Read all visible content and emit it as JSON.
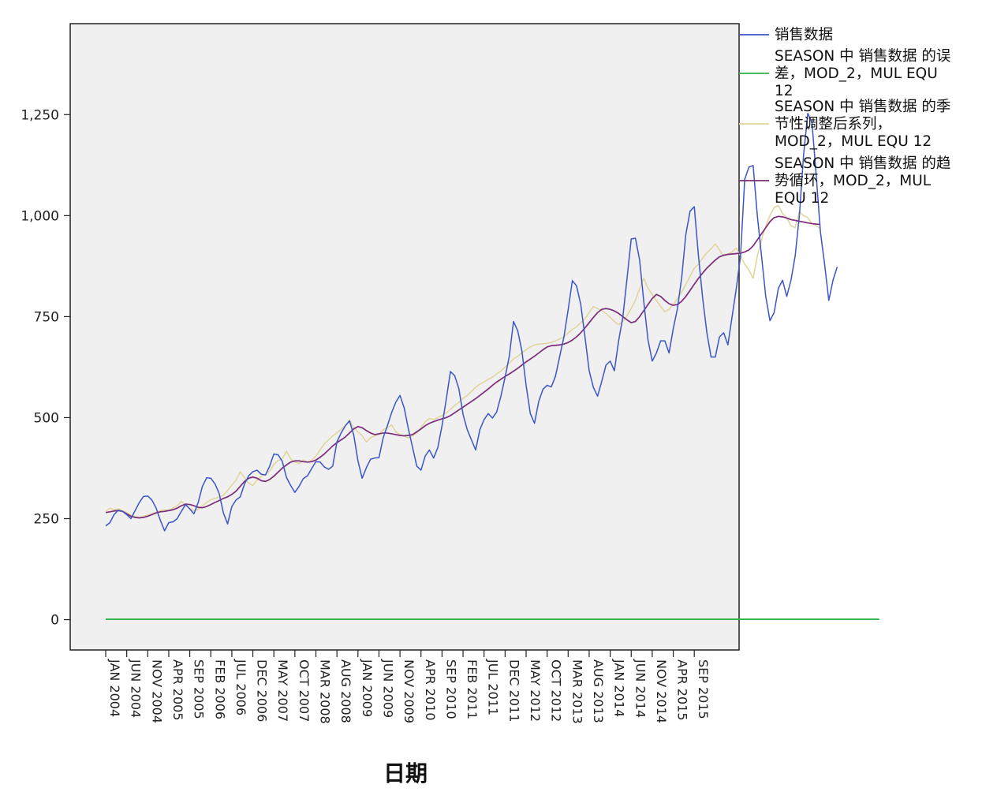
{
  "chart_data": {
    "type": "line",
    "title": "",
    "xlabel": "日期",
    "ylabel": "",
    "ylim": [
      -75,
      1475
    ],
    "y_ticks": [
      {
        "value": 0,
        "label": "0"
      },
      {
        "value": 250,
        "label": "250"
      },
      {
        "value": 500,
        "label": "500"
      },
      {
        "value": 750,
        "label": "750"
      },
      {
        "value": 1000,
        "label": "1,000"
      },
      {
        "value": 1250,
        "label": "1,250"
      }
    ],
    "x_tick_labels": [
      "JAN 2004",
      "JUN 2004",
      "NOV 2004",
      "APR 2005",
      "SEP 2005",
      "FEB 2006",
      "JUL 2006",
      "DEC 2006",
      "MAY 2007",
      "OCT 2007",
      "MAR 2008",
      "AUG 2008",
      "JAN 2009",
      "JUN 2009",
      "NOV 2009",
      "APR 2010",
      "SEP 2010",
      "FEB 2011",
      "JUL 2011",
      "DEC 2011",
      "MAY 2012",
      "OCT 2012",
      "MAR 2013",
      "AUG 2013",
      "JAN 2014",
      "JUN 2014",
      "NOV 2014",
      "APR 2015",
      "SEP 2015"
    ],
    "x_start": "JAN 2004",
    "x_end": "MAR 2016",
    "grid": false,
    "legend_position": "right",
    "series": [
      {
        "name": "销售数据",
        "color": "#3a55c8",
        "values": [
          232,
          240,
          260,
          271,
          268,
          260,
          250,
          270,
          290,
          305,
          306,
          296,
          276,
          246,
          220,
          240,
          242,
          250,
          268,
          285,
          274,
          262,
          290,
          330,
          351,
          350,
          336,
          312,
          264,
          237,
          280,
          296,
          304,
          335,
          356,
          366,
          370,
          360,
          358,
          380,
          410,
          408,
          392,
          352,
          332,
          315,
          330,
          349,
          356,
          374,
          391,
          390,
          378,
          372,
          380,
          440,
          462,
          480,
          492,
          457,
          393,
          350,
          376,
          397,
          400,
          401,
          450,
          480,
          512,
          538,
          555,
          524,
          472,
          426,
          380,
          370,
          405,
          420,
          400,
          426,
          480,
          545,
          614,
          604,
          572,
          508,
          470,
          445,
          420,
          470,
          495,
          510,
          499,
          514,
          553,
          600,
          652,
          738,
          715,
          665,
          580,
          510,
          486,
          540,
          570,
          580,
          576,
          603,
          652,
          700,
          767,
          839,
          826,
          780,
          700,
          616,
          575,
          553,
          590,
          630,
          640,
          616,
          690,
          748,
          844,
          942,
          944,
          890,
          786,
          692,
          640,
          660,
          690,
          690,
          660,
          720,
          770,
          846,
          954,
          1011,
          1022,
          900,
          795,
          710,
          650,
          650,
          700,
          710,
          680,
          750,
          820,
          900,
          1090,
          1120,
          1124,
          1000,
          900,
          800,
          740,
          760,
          820,
          840,
          800,
          840,
          900,
          1000,
          1150,
          1253,
          1230,
          1100,
          960,
          880,
          790,
          840,
          873
        ]
      },
      {
        "name": "SEASON 中 销售数据 的误差，MOD_2，MUL EQU 12",
        "color": "#2fb344",
        "values": [
          1.0,
          1.0,
          1.0,
          1.0,
          1.0,
          1.0,
          1.0,
          1.0,
          1.0,
          1.0,
          1.0,
          1.0,
          1.0,
          1.0,
          1.0,
          1.0,
          1.0,
          1.0,
          1.0,
          1.0,
          1.0,
          1.0,
          1.0,
          1.0,
          1.0,
          1.0,
          1.0,
          1.0,
          1.0,
          1.0,
          1.0,
          1.0,
          1.0,
          1.0,
          1.0,
          1.0,
          1.0,
          1.0,
          1.0,
          1.0,
          1.0,
          1.0,
          1.0,
          1.0,
          1.0,
          1.0,
          1.0,
          1.0,
          1.0,
          1.0,
          1.0,
          1.0,
          1.0,
          1.0,
          1.0,
          1.0,
          1.0,
          1.0,
          1.0,
          1.0,
          1.0,
          1.0,
          1.0,
          1.0,
          1.0,
          1.0,
          1.0,
          1.0,
          1.0,
          1.0,
          1.0,
          1.0,
          1.0,
          1.0,
          1.0,
          1.0,
          1.0,
          1.0,
          1.0,
          1.0,
          1.0,
          1.0,
          1.0,
          1.0,
          1.0,
          1.0,
          1.0,
          1.0,
          1.0,
          1.0,
          1.0,
          1.0,
          1.0,
          1.0,
          1.0,
          1.0,
          1.0,
          1.0,
          1.0,
          1.0,
          1.0,
          1.0,
          1.0,
          1.0,
          1.0,
          1.0,
          1.0,
          1.0,
          1.0,
          1.0,
          1.0,
          1.0,
          1.0,
          1.0,
          1.0,
          1.0,
          1.0,
          1.0,
          1.0,
          1.0,
          1.0,
          1.0,
          1.0,
          1.0,
          1.0,
          1.0,
          1.0,
          1.0,
          1.0,
          1.0,
          1.0,
          1.0,
          1.0,
          1.0,
          1.0,
          1.0,
          1.0,
          1.0,
          1.0,
          1.0,
          1.0,
          1.0,
          1.0,
          1.0,
          1.0,
          1.0,
          1.0,
          1.0,
          1.0,
          1.0,
          1.0,
          1.0,
          1.0,
          1.0,
          1.0,
          1.0,
          1.0,
          1.0,
          1.0,
          1.0,
          1.0,
          1.0,
          1.0,
          1.0,
          1.0,
          1.0,
          1.0,
          1.0,
          1.0,
          1.0,
          1.0,
          1.0,
          1.0,
          1.0,
          1.0,
          1.0,
          1.0,
          1.0,
          1.0,
          1.0,
          1.0,
          1.0,
          1.0,
          1.0,
          1.0
        ]
      },
      {
        "name": "SEASON 中 销售数据 的季节性调整后系列，MOD_2，MUL EQU 12",
        "color": "#e0d49a",
        "values": [
          268,
          276,
          272,
          274,
          270,
          265,
          258,
          255,
          253,
          256,
          259,
          262,
          266,
          270,
          272,
          270,
          276,
          282,
          293,
          283,
          275,
          270,
          273,
          282,
          290,
          297,
          300,
          303,
          308,
          320,
          333,
          345,
          366,
          352,
          338,
          332,
          345,
          355,
          360,
          368,
          384,
          394,
          398,
          417,
          398,
          390,
          386,
          395,
          390,
          394,
          405,
          420,
          435,
          445,
          455,
          462,
          472,
          480,
          495,
          475,
          465,
          455,
          440,
          450,
          455,
          458,
          470,
          475,
          482,
          465,
          458,
          455,
          450,
          455,
          462,
          475,
          490,
          498,
          495,
          500,
          505,
          512,
          520,
          530,
          538,
          548,
          555,
          565,
          575,
          583,
          588,
          595,
          600,
          608,
          615,
          625,
          635,
          645,
          652,
          660,
          668,
          675,
          680,
          682,
          683,
          684,
          686,
          690,
          695,
          700,
          710,
          718,
          725,
          735,
          745,
          760,
          775,
          770,
          765,
          758,
          748,
          738,
          730,
          738,
          752,
          770,
          790,
          820,
          845,
          820,
          805,
          790,
          775,
          762,
          768,
          780,
          795,
          810,
          830,
          850,
          870,
          880,
          895,
          908,
          918,
          930,
          915,
          900,
          905,
          910,
          920,
          900,
          880,
          865,
          845,
          900,
          940,
          975,
          1000,
          1020,
          1025,
          1005,
          995,
          975,
          970,
          1010,
          1000,
          995,
          980,
          975,
          968
        ]
      },
      {
        "name": "SEASON 中 销售数据 的趋势循环，MOD_2，MUL EQU 12",
        "color": "#7b2c7a",
        "values": [
          265,
          267,
          269,
          270,
          268,
          262,
          256,
          253,
          252,
          253,
          256,
          260,
          264,
          267,
          268,
          270,
          272,
          276,
          282,
          286,
          285,
          282,
          278,
          277,
          280,
          285,
          290,
          295,
          300,
          304,
          310,
          318,
          330,
          342,
          350,
          353,
          350,
          344,
          342,
          347,
          355,
          365,
          375,
          383,
          390,
          393,
          393,
          391,
          390,
          391,
          395,
          402,
          410,
          420,
          430,
          438,
          445,
          452,
          462,
          472,
          478,
          475,
          468,
          462,
          458,
          460,
          462,
          462,
          460,
          458,
          456,
          455,
          456,
          458,
          465,
          472,
          480,
          486,
          490,
          494,
          497,
          500,
          505,
          512,
          519,
          526,
          533,
          540,
          547,
          555,
          563,
          571,
          580,
          588,
          595,
          602,
          608,
          615,
          622,
          630,
          638,
          645,
          652,
          660,
          668,
          675,
          678,
          679,
          680,
          682,
          686,
          692,
          700,
          710,
          722,
          735,
          748,
          760,
          768,
          770,
          768,
          764,
          758,
          750,
          742,
          735,
          738,
          750,
          765,
          780,
          795,
          805,
          800,
          790,
          782,
          778,
          780,
          788,
          800,
          815,
          830,
          845,
          858,
          870,
          880,
          890,
          898,
          902,
          904,
          905,
          906,
          907,
          910,
          915,
          925,
          940,
          955,
          970,
          985,
          995,
          998,
          997,
          994,
          990,
          988,
          986,
          984,
          982,
          980,
          979,
          978
        ]
      }
    ]
  }
}
